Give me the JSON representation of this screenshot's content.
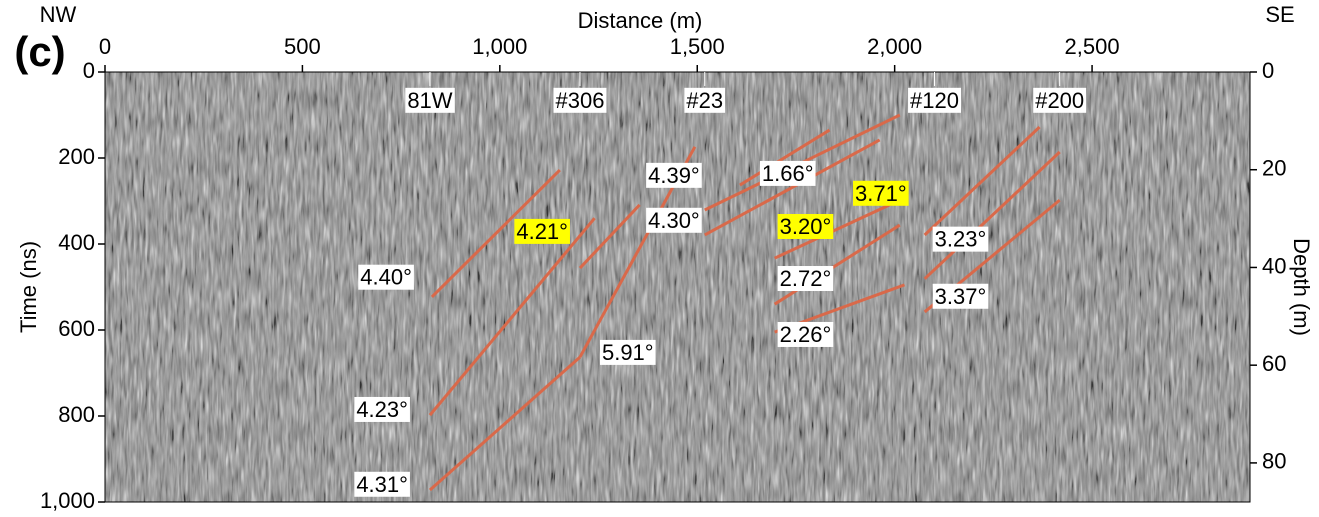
{
  "chart_data": {
    "type": "radargram",
    "panel_label": "(c)",
    "title": "Distance (m)",
    "y_label": "Time (ns)",
    "y2_label": "Depth (m)",
    "left_label": "NW",
    "right_label": "SE",
    "xlim": [
      0,
      2900
    ],
    "xticks": [
      0,
      500,
      {
        "value": 1000,
        "label": "1,000"
      },
      {
        "value": 1500,
        "label": "1,500"
      },
      {
        "value": 2000,
        "label": "2,000"
      },
      {
        "value": 2500,
        "label": "2,500"
      }
    ],
    "ylim": [
      0,
      1000
    ],
    "yticks": [
      0,
      200,
      400,
      600,
      800,
      {
        "value": 1000,
        "label": "1,000"
      }
    ],
    "y2lim": [
      0,
      88
    ],
    "y2ticks": [
      0,
      20,
      40,
      60,
      80
    ],
    "line_color": "#d9694a",
    "highlight_color": "#ffff00",
    "boreholes": [
      {
        "label": "81W",
        "x": 823
      },
      {
        "label": "#306",
        "x": 1203
      },
      {
        "label": "#23",
        "x": 1519
      },
      {
        "label": "#120",
        "x": 2101
      },
      {
        "label": "#200",
        "x": 2418
      }
    ],
    "dips": [
      {
        "label": "4.40°",
        "highlight": false,
        "x": [
          828,
          1152
        ],
        "t": [
          523,
          228
        ]
      },
      {
        "label": "4.23°",
        "highlight": false,
        "x": [
          823,
          1240
        ],
        "t": [
          798,
          340
        ]
      },
      {
        "label": "4.31°",
        "highlight": false,
        "x": [
          823,
          1203
        ],
        "t": [
          972,
          663
        ]
      },
      {
        "label": "4.21°",
        "highlight": true,
        "x": [
          1203,
          1354
        ],
        "t": [
          456,
          309
        ]
      },
      {
        "label": "5.91°",
        "highlight": false,
        "x": [
          1203,
          1494
        ],
        "t": [
          663,
          174
        ]
      },
      {
        "label": "4.39°",
        "highlight": false,
        "x": [
          1519,
          2013
        ],
        "t": [
          321,
          100
        ]
      },
      {
        "label": "4.30°",
        "highlight": false,
        "x": [
          1519,
          1962
        ],
        "t": [
          379,
          158
        ]
      },
      {
        "label": "1.66°",
        "highlight": false,
        "x": [
          1608,
          1835
        ],
        "t": [
          263,
          135
        ]
      },
      {
        "label": "3.20°",
        "highlight": true,
        "x": [
          1696,
          2013
        ],
        "t": [
          433,
          298
        ]
      },
      {
        "label": "2.72°",
        "highlight": false,
        "x": [
          1696,
          2013
        ],
        "t": [
          540,
          356
        ]
      },
      {
        "label": "2.26°",
        "highlight": false,
        "x": [
          1696,
          2025
        ],
        "t": [
          605,
          495
        ]
      },
      {
        "label": "3.71°",
        "highlight": true,
        "x": [
          2076,
          2367
        ],
        "t": [
          379,
          128
        ]
      },
      {
        "label": "3.23°",
        "highlight": false,
        "x": [
          2076,
          2418
        ],
        "t": [
          481,
          186
        ]
      },
      {
        "label": "3.37°",
        "highlight": false,
        "x": [
          2076,
          2418
        ],
        "t": [
          558,
          298
        ]
      }
    ]
  }
}
